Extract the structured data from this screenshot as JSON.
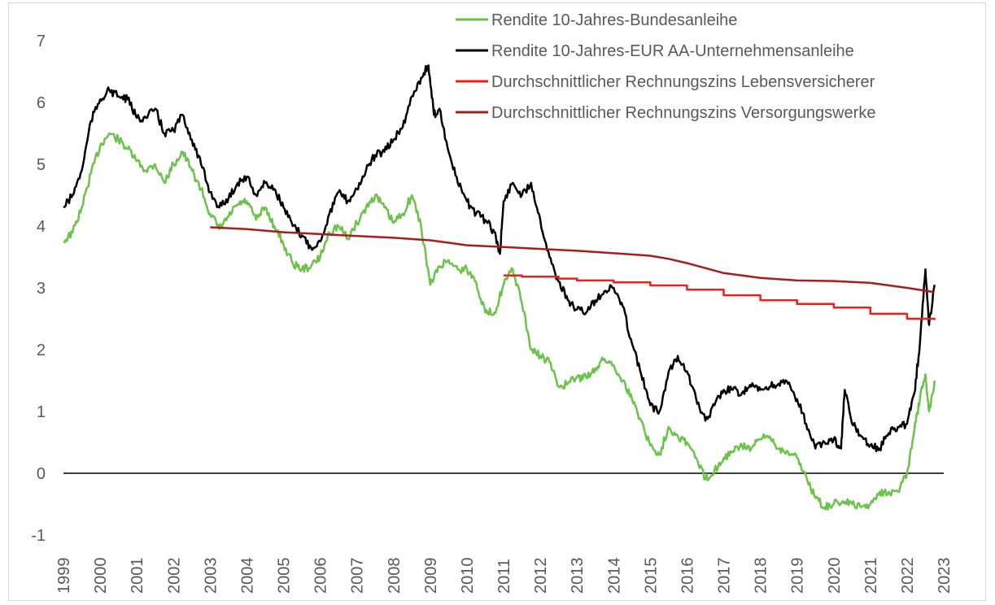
{
  "chart_data": {
    "type": "line",
    "title": "",
    "xlabel": "",
    "ylabel": "",
    "xlim": [
      1999,
      2023
    ],
    "ylim": [
      -1,
      7
    ],
    "x_ticks": [
      "1999",
      "2000",
      "2001",
      "2002",
      "2003",
      "2004",
      "2005",
      "2006",
      "2007",
      "2008",
      "2009",
      "2010",
      "2011",
      "2012",
      "2013",
      "2014",
      "2015",
      "2016",
      "2017",
      "2018",
      "2019",
      "2020",
      "2021",
      "2022",
      "2023"
    ],
    "y_ticks": [
      "-1",
      "0",
      "1",
      "2",
      "3",
      "4",
      "5",
      "6",
      "7"
    ],
    "grid": false,
    "legend_position": "top-right",
    "series": [
      {
        "name": "Rendite 10-Jahres-Bundesanleihe",
        "color": "#6cc24a",
        "x": [
          1999.0,
          1999.25,
          1999.5,
          1999.75,
          2000.0,
          2000.25,
          2000.5,
          2000.75,
          2001.0,
          2001.25,
          2001.5,
          2001.75,
          2002.0,
          2002.25,
          2002.5,
          2002.75,
          2003.0,
          2003.25,
          2003.5,
          2003.75,
          2004.0,
          2004.25,
          2004.5,
          2004.75,
          2005.0,
          2005.25,
          2005.5,
          2005.75,
          2006.0,
          2006.25,
          2006.5,
          2006.75,
          2007.0,
          2007.25,
          2007.5,
          2007.75,
          2008.0,
          2008.25,
          2008.5,
          2008.75,
          2009.0,
          2009.25,
          2009.5,
          2009.75,
          2010.0,
          2010.25,
          2010.5,
          2010.75,
          2011.0,
          2011.25,
          2011.5,
          2011.75,
          2012.0,
          2012.25,
          2012.5,
          2012.75,
          2013.0,
          2013.25,
          2013.5,
          2013.75,
          2014.0,
          2014.25,
          2014.5,
          2014.75,
          2015.0,
          2015.25,
          2015.5,
          2015.75,
          2016.0,
          2016.25,
          2016.5,
          2016.75,
          2017.0,
          2017.25,
          2017.5,
          2017.75,
          2018.0,
          2018.25,
          2018.5,
          2018.75,
          2019.0,
          2019.25,
          2019.5,
          2019.75,
          2020.0,
          2020.25,
          2020.5,
          2020.75,
          2021.0,
          2021.25,
          2021.5,
          2021.75,
          2022.0,
          2022.2,
          2022.35,
          2022.5,
          2022.6,
          2022.75
        ],
        "y": [
          3.75,
          3.9,
          4.3,
          4.85,
          5.3,
          5.5,
          5.4,
          5.25,
          5.05,
          4.9,
          5.0,
          4.7,
          5.0,
          5.2,
          4.9,
          4.6,
          4.2,
          3.95,
          4.15,
          4.35,
          4.4,
          4.1,
          4.3,
          4.0,
          3.7,
          3.4,
          3.3,
          3.35,
          3.5,
          3.9,
          4.0,
          3.8,
          4.05,
          4.3,
          4.5,
          4.3,
          4.05,
          4.2,
          4.5,
          4.0,
          3.05,
          3.35,
          3.45,
          3.3,
          3.3,
          3.1,
          2.6,
          2.6,
          3.05,
          3.3,
          2.75,
          2.0,
          1.9,
          1.8,
          1.4,
          1.45,
          1.55,
          1.55,
          1.7,
          1.85,
          1.75,
          1.5,
          1.2,
          0.85,
          0.45,
          0.3,
          0.75,
          0.6,
          0.5,
          0.25,
          -0.1,
          0.05,
          0.25,
          0.35,
          0.45,
          0.4,
          0.55,
          0.6,
          0.4,
          0.35,
          0.25,
          -0.05,
          -0.4,
          -0.55,
          -0.5,
          -0.45,
          -0.5,
          -0.55,
          -0.5,
          -0.3,
          -0.3,
          -0.3,
          0.0,
          0.7,
          1.2,
          1.6,
          1.0,
          1.5
        ]
      },
      {
        "name": "Rendite 10-Jahres-EUR AA-Unternehmensanleihe",
        "color": "#000000",
        "x": [
          1999.0,
          1999.25,
          1999.5,
          1999.75,
          2000.0,
          2000.25,
          2000.5,
          2000.75,
          2001.0,
          2001.25,
          2001.5,
          2001.75,
          2002.0,
          2002.25,
          2002.5,
          2002.75,
          2003.0,
          2003.25,
          2003.5,
          2003.75,
          2004.0,
          2004.25,
          2004.5,
          2004.75,
          2005.0,
          2005.25,
          2005.5,
          2005.75,
          2006.0,
          2006.25,
          2006.5,
          2006.75,
          2007.0,
          2007.25,
          2007.5,
          2007.75,
          2008.0,
          2008.25,
          2008.5,
          2008.75,
          2008.95,
          2009.1,
          2009.25,
          2009.5,
          2009.75,
          2010.0,
          2010.25,
          2010.5,
          2010.75,
          2010.9,
          2011.0,
          2011.25,
          2011.5,
          2011.75,
          2012.0,
          2012.25,
          2012.5,
          2012.75,
          2013.0,
          2013.25,
          2013.5,
          2013.75,
          2014.0,
          2014.25,
          2014.5,
          2014.75,
          2015.0,
          2015.25,
          2015.5,
          2015.75,
          2016.0,
          2016.25,
          2016.5,
          2016.75,
          2017.0,
          2017.25,
          2017.5,
          2017.75,
          2018.0,
          2018.25,
          2018.5,
          2018.75,
          2019.0,
          2019.25,
          2019.5,
          2019.75,
          2020.0,
          2020.2,
          2020.3,
          2020.5,
          2020.75,
          2021.0,
          2021.25,
          2021.5,
          2021.75,
          2022.0,
          2022.2,
          2022.35,
          2022.5,
          2022.6,
          2022.75
        ],
        "y": [
          4.3,
          4.5,
          4.9,
          5.7,
          6.05,
          6.2,
          6.1,
          6.05,
          5.75,
          5.75,
          5.9,
          5.5,
          5.55,
          5.8,
          5.4,
          5.0,
          4.55,
          4.3,
          4.45,
          4.7,
          4.8,
          4.5,
          4.7,
          4.6,
          4.3,
          4.0,
          3.85,
          3.65,
          3.75,
          4.2,
          4.55,
          4.4,
          4.6,
          4.9,
          5.15,
          5.2,
          5.4,
          5.6,
          6.1,
          6.4,
          6.6,
          5.8,
          5.9,
          5.2,
          4.7,
          4.4,
          4.2,
          4.1,
          3.9,
          3.55,
          4.4,
          4.7,
          4.5,
          4.7,
          4.1,
          3.5,
          3.1,
          2.8,
          2.65,
          2.6,
          2.8,
          2.95,
          3.0,
          2.7,
          2.1,
          1.6,
          1.1,
          1.0,
          1.65,
          1.9,
          1.65,
          1.2,
          0.85,
          1.1,
          1.35,
          1.35,
          1.3,
          1.4,
          1.35,
          1.4,
          1.45,
          1.45,
          1.2,
          0.8,
          0.4,
          0.5,
          0.55,
          0.4,
          1.35,
          0.8,
          0.6,
          0.45,
          0.4,
          0.65,
          0.75,
          0.8,
          1.3,
          2.1,
          3.3,
          2.4,
          3.05
        ]
      },
      {
        "name": "Durchschnittlicher Rechnungszins Lebensversicherer",
        "color": "#e8211c",
        "x": [
          2011.0,
          2011.5,
          2012.5,
          2013.0,
          2014.0,
          2015.0,
          2016.0,
          2017.0,
          2018.0,
          2019.0,
          2020.0,
          2021.0,
          2022.0,
          2022.75
        ],
        "y": [
          3.2,
          3.18,
          3.15,
          3.12,
          3.09,
          3.04,
          2.97,
          2.88,
          2.8,
          2.74,
          2.68,
          2.58,
          2.5,
          2.48
        ]
      },
      {
        "name": "Durchschnittlicher Rechnungszins Versorgungswerke",
        "color": "#a31f1f",
        "x": [
          2003.0,
          2004.0,
          2005.0,
          2006.0,
          2007.0,
          2008.0,
          2009.0,
          2009.5,
          2010.0,
          2011.0,
          2012.0,
          2013.0,
          2014.0,
          2015.0,
          2015.5,
          2016.0,
          2016.5,
          2017.0,
          2018.0,
          2019.0,
          2020.0,
          2021.0,
          2022.0,
          2022.75
        ],
        "y": [
          3.98,
          3.95,
          3.9,
          3.87,
          3.84,
          3.81,
          3.77,
          3.73,
          3.69,
          3.66,
          3.63,
          3.6,
          3.56,
          3.52,
          3.47,
          3.4,
          3.32,
          3.24,
          3.16,
          3.12,
          3.11,
          3.08,
          3.0,
          2.93
        ]
      }
    ]
  }
}
